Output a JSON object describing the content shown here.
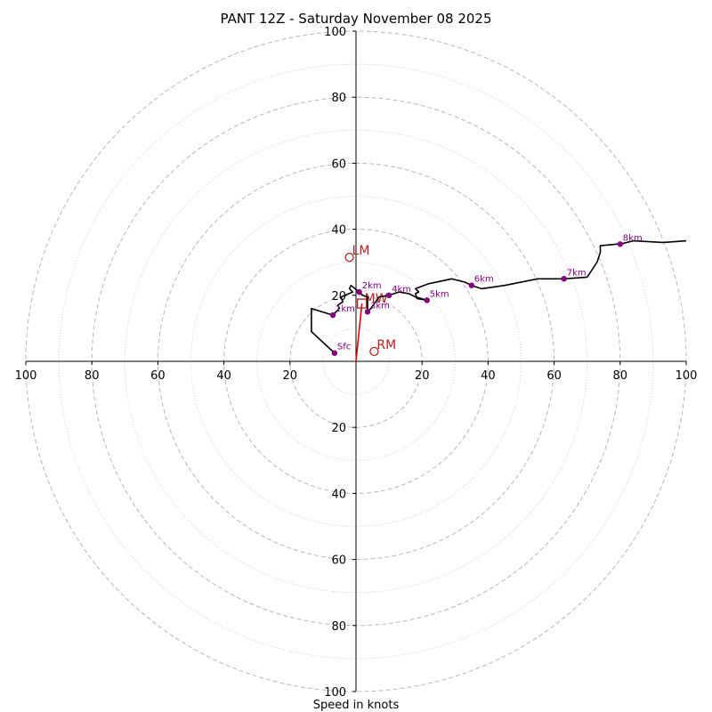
{
  "chart_data": {
    "type": "hodograph",
    "title": "PANT 12Z - Saturday November 08 2025",
    "xlabel": "Speed in knots",
    "range_kt": 100,
    "rings_major": [
      20,
      40,
      60,
      80,
      100
    ],
    "rings_minor": [
      10,
      30,
      50,
      70,
      90
    ],
    "x_ticks": [
      {
        "value": -100,
        "label": "100"
      },
      {
        "value": -80,
        "label": "80"
      },
      {
        "value": -60,
        "label": "60"
      },
      {
        "value": -40,
        "label": "40"
      },
      {
        "value": -20,
        "label": "20"
      },
      {
        "value": 20,
        "label": "20"
      },
      {
        "value": 40,
        "label": "40"
      },
      {
        "value": 60,
        "label": "60"
      },
      {
        "value": 80,
        "label": "80"
      },
      {
        "value": 100,
        "label": "100"
      }
    ],
    "y_ticks": [
      {
        "value": 100,
        "label": "100"
      },
      {
        "value": 80,
        "label": "80"
      },
      {
        "value": 60,
        "label": "60"
      },
      {
        "value": 40,
        "label": "40"
      },
      {
        "value": 20,
        "label": "20"
      },
      {
        "value": -20,
        "label": "20"
      },
      {
        "value": -40,
        "label": "40"
      },
      {
        "value": -60,
        "label": "60"
      },
      {
        "value": -80,
        "label": "80"
      },
      {
        "value": -100,
        "label": "100"
      }
    ],
    "trace": [
      [
        -6.5,
        2.5
      ],
      [
        -13.5,
        9
      ],
      [
        -13.5,
        16
      ],
      [
        -7,
        14
      ],
      [
        -5,
        16
      ],
      [
        -5.5,
        17
      ],
      [
        -4,
        18
      ],
      [
        -4.5,
        19.5
      ],
      [
        -1,
        21
      ],
      [
        -2,
        22
      ],
      [
        -1.5,
        23
      ],
      [
        1,
        21
      ],
      [
        2,
        20
      ],
      [
        3.5,
        19.5
      ],
      [
        3.5,
        15
      ],
      [
        4.5,
        16
      ],
      [
        7,
        19.5
      ],
      [
        10,
        20
      ],
      [
        13,
        21
      ],
      [
        16,
        20.5
      ],
      [
        17,
        20
      ],
      [
        18,
        19.5
      ],
      [
        21.5,
        18.5
      ],
      [
        18.5,
        19
      ],
      [
        18,
        20.5
      ],
      [
        19,
        21
      ],
      [
        18,
        22
      ],
      [
        22,
        23.5
      ],
      [
        29,
        25
      ],
      [
        33,
        24
      ],
      [
        35,
        23
      ],
      [
        38,
        22
      ],
      [
        45,
        23
      ],
      [
        55,
        25
      ],
      [
        58,
        25
      ],
      [
        63,
        25
      ],
      [
        70,
        25.5
      ],
      [
        73,
        30
      ],
      [
        74,
        33
      ],
      [
        74,
        35
      ],
      [
        79,
        35.5
      ],
      [
        80,
        35.5
      ],
      [
        84,
        36.5
      ],
      [
        93,
        36
      ],
      [
        100,
        36.5
      ]
    ],
    "height_markers": [
      {
        "label": "Sfc",
        "u": -6.5,
        "v": 2.5
      },
      {
        "label": "1km",
        "u": -7,
        "v": 14
      },
      {
        "label": "2km",
        "u": 1,
        "v": 21
      },
      {
        "label": "3km",
        "u": 3.5,
        "v": 15
      },
      {
        "label": "4km",
        "u": 10,
        "v": 20
      },
      {
        "label": "5km",
        "u": 21.5,
        "v": 18.5
      },
      {
        "label": "6km",
        "u": 35,
        "v": 23
      },
      {
        "label": "7km",
        "u": 63,
        "v": 25
      },
      {
        "label": "8km",
        "u": 80,
        "v": 35.5
      }
    ],
    "storm_motions": [
      {
        "label": "LM",
        "u": -2,
        "v": 31.5
      },
      {
        "label": "RM",
        "u": 5.5,
        "v": 3
      }
    ],
    "mean_wind": {
      "label": "MW",
      "u": 1.8,
      "v": 17.5
    }
  }
}
